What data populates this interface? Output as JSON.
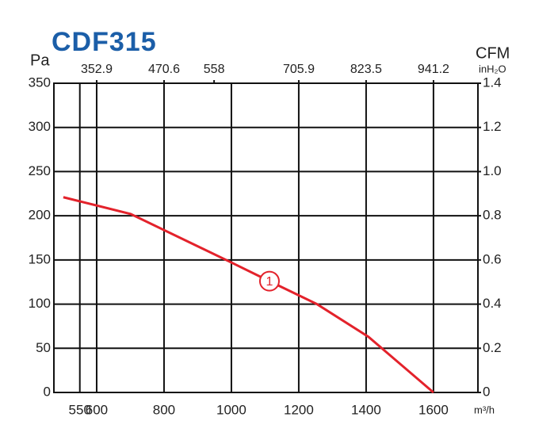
{
  "chart_data": {
    "type": "line",
    "title": "CDF315",
    "y_label": "Pa",
    "x2_label": "CFM",
    "y2_label": "inH₂O",
    "x_label": "m³/h",
    "xlim": [
      473,
      1732
    ],
    "xticks": [
      550,
      600,
      800,
      1000,
      1200,
      1400,
      1600
    ],
    "x2lim": [
      278.2,
      1018.8
    ],
    "x2ticks": [
      352.9,
      470.6,
      558,
      705.9,
      823.5,
      941.2
    ],
    "ylim": [
      0,
      350
    ],
    "yticks": [
      0,
      50,
      100,
      150,
      200,
      250,
      300,
      350
    ],
    "y2lim": [
      0,
      1.4
    ],
    "y2ticks": [
      0,
      0.2,
      0.4,
      0.6,
      0.8,
      {
        "value": 1.0,
        "label": "1.0"
      },
      1.2,
      1.4
    ],
    "grid": true,
    "series": [
      {
        "name": "1",
        "color": "#e3222b",
        "x": [
          501,
          701,
          995,
          1113,
          1254,
          1407,
          1600
        ],
        "values": [
          221,
          202,
          148,
          126,
          100,
          63,
          0
        ]
      }
    ]
  }
}
